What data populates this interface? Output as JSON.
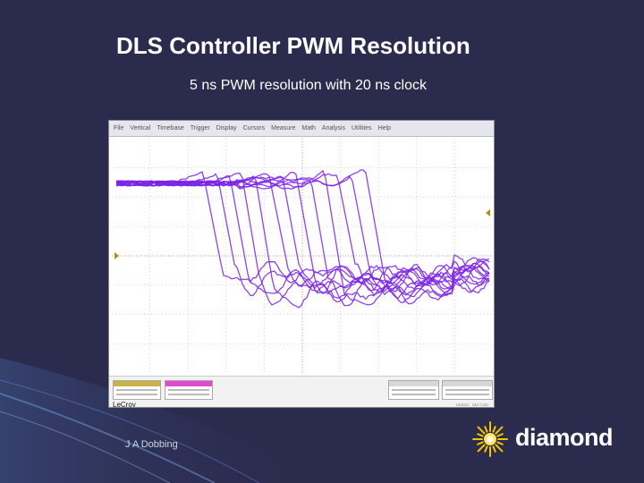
{
  "slide": {
    "title": "DLS Controller PWM Resolution",
    "subtitle": "5 ns PWM resolution with 20 ns clock",
    "author": "J A Dobbing"
  },
  "scope": {
    "brand": "LeCroy",
    "menu": [
      "File",
      "Vertical",
      "Timebase",
      "Trigger",
      "Display",
      "Cursors",
      "Measure",
      "Math",
      "Analysis",
      "Utilities",
      "Help"
    ],
    "trace_color": "#7b22e6"
  },
  "logo": {
    "text": "diamond",
    "icon": "diamond-sunburst-icon"
  },
  "colors": {
    "background": "#2b2b4e",
    "accent": "#f2c500"
  }
}
